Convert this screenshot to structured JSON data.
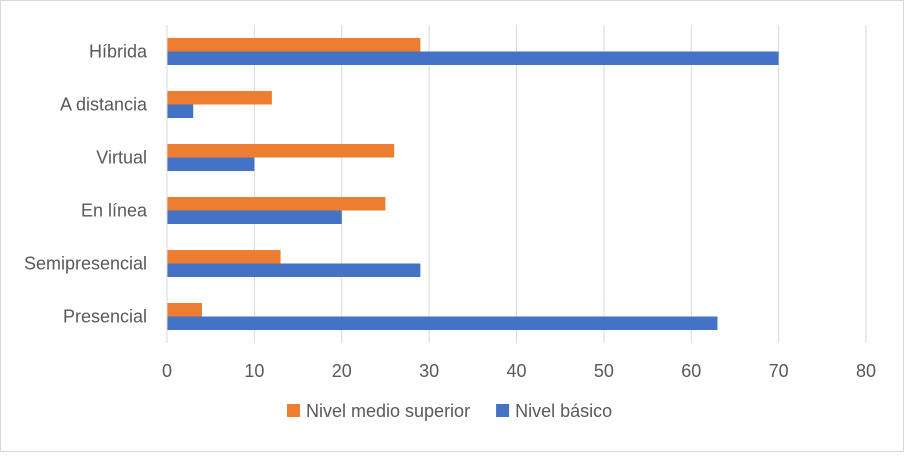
{
  "chart_data": {
    "type": "bar",
    "orientation": "horizontal",
    "categories": [
      "Presencial",
      "Semipresencial",
      "En línea",
      "Virtual",
      "A distancia",
      "Híbrida"
    ],
    "series": [
      {
        "name": "Nivel básico",
        "color": "#4472C4",
        "values": [
          63,
          29,
          20,
          10,
          3,
          70
        ]
      },
      {
        "name": "Nivel medio superior",
        "color": "#ED7D31",
        "values": [
          4,
          13,
          25,
          26,
          12,
          29
        ]
      }
    ],
    "x_ticks": [
      "0",
      "10",
      "20",
      "30",
      "40",
      "50",
      "60",
      "70",
      "80"
    ],
    "xlim": [
      0,
      80
    ],
    "grid": true,
    "legend_position": "bottom",
    "legend_order": [
      "Nivel medio superior",
      "Nivel básico"
    ],
    "title": "",
    "xlabel": "",
    "ylabel": ""
  }
}
